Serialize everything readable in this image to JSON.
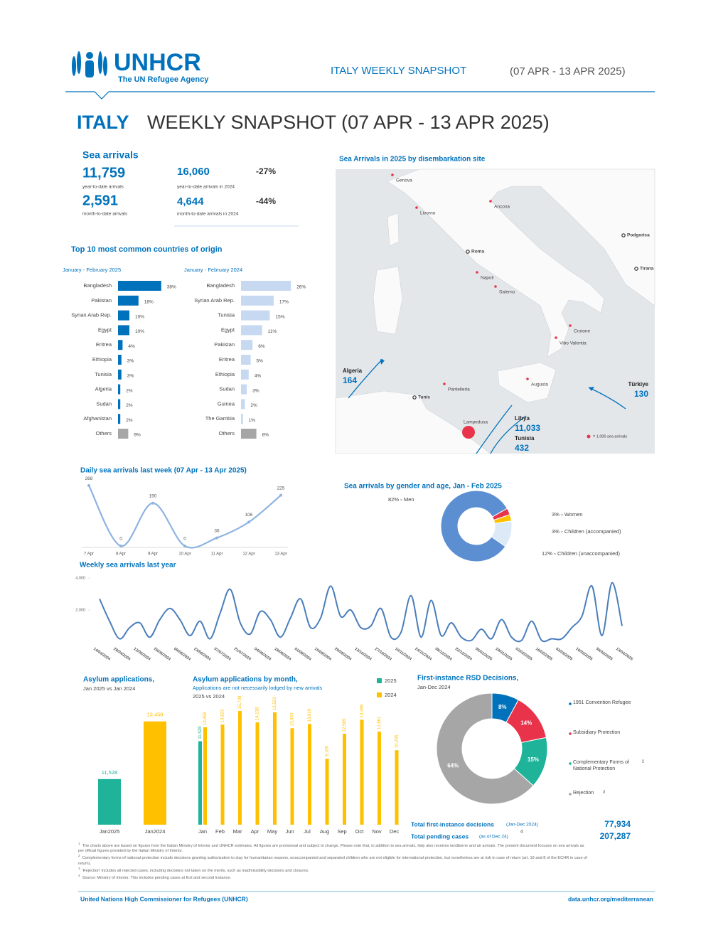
{
  "header": {
    "logo": "UNHCR",
    "logo_tagline": "The UN Refugee Agency",
    "banner": "ITALY WEEKLY SNAPSHOT",
    "banner_dates": "(07 APR - 13 APR 2025)",
    "title_country": "ITALY",
    "title_rest": "WEEKLY SNAPSHOT (07 APR - 13 APR 2025)"
  },
  "sea_arrivals": {
    "title": "Sea arrivals",
    "items": [
      {
        "value": "11,759",
        "label": "year-to-date arrivals"
      },
      {
        "value": "16,060",
        "label": "year-to-date arrivals in 2024",
        "change": "-27%"
      },
      {
        "value": "2,591",
        "label": "month-to-date arrivals"
      },
      {
        "value": "4,644",
        "label": "month-to-date arrivals in 2024",
        "change": "-44%"
      }
    ]
  },
  "origin_title": "Top 10 most common countries of origin",
  "map": {
    "title": "Sea Arrivals in 2025 by disembarkation site",
    "places": [
      "Genova",
      "Livorno",
      "Ancona",
      "Roma",
      "Napoli",
      "Salerno",
      "Crotone",
      "Vibo Valentia",
      "Augusta",
      "Pantelleria",
      "Lampedusa",
      "Tunis",
      "Podgorica",
      "Tirana"
    ],
    "routes": [
      {
        "name": "Algeria",
        "value": "164"
      },
      {
        "name": "Türkiye",
        "value": "130"
      },
      {
        "name": "Libya",
        "value": "11,033"
      },
      {
        "name": "Tunisia",
        "value": "432"
      }
    ],
    "legend": "= 1,000 sea arrivals"
  },
  "chart_data": [
    {
      "type": "hbar",
      "subtitle": "January - February 2025",
      "categories": [
        "Bangladesh",
        "Pakistan",
        "Syrian Arab Rep.",
        "Egypt",
        "Eritrea",
        "Ethiopia",
        "Tunisia",
        "Algeria",
        "Sudan",
        "Afghanistan",
        "Others"
      ],
      "values": [
        38,
        18,
        10,
        10,
        4,
        3,
        3,
        2,
        2,
        2,
        9
      ],
      "value_labels": [
        "38%",
        "18%",
        "10%",
        "10%",
        "4%",
        "3%",
        "3%",
        "2%",
        "2%",
        "2%",
        "9%"
      ],
      "colors": [
        "#0072bc",
        "#0072bc",
        "#0072bc",
        "#0072bc",
        "#0072bc",
        "#0072bc",
        "#0072bc",
        "#0072bc",
        "#0072bc",
        "#0072bc",
        "#a6a6a6"
      ]
    },
    {
      "type": "hbar",
      "subtitle": "January - February 2024",
      "categories": [
        "Bangladesh",
        "Syrian Arab Rep.",
        "Tunisia",
        "Egypt",
        "Pakistan",
        "Eritrea",
        "Ethiopia",
        "Sudan",
        "Guinea",
        "The Gambia",
        "Others"
      ],
      "values": [
        26,
        17,
        15,
        11,
        6,
        5,
        4,
        3,
        2,
        1,
        8
      ],
      "value_labels": [
        "26%",
        "17%",
        "15%",
        "11%",
        "6%",
        "5%",
        "4%",
        "3%",
        "2%",
        "1%",
        "8%"
      ],
      "colors": [
        "#c6d9f1",
        "#c6d9f1",
        "#c6d9f1",
        "#c6d9f1",
        "#c6d9f1",
        "#c6d9f1",
        "#c6d9f1",
        "#c6d9f1",
        "#c6d9f1",
        "#c6d9f1",
        "#a6a6a6"
      ]
    },
    {
      "type": "line",
      "title": "Daily sea arrivals last week (07 Apr - 13 Apr 2025)",
      "categories": [
        "7 Apr",
        "8 Apr",
        "9 Apr",
        "10 Apr",
        "11 Apr",
        "12 Apr",
        "13 Apr"
      ],
      "values": [
        268,
        0,
        190,
        0,
        36,
        106,
        225
      ],
      "color": "#8db3e2",
      "ylim": [
        0,
        270
      ],
      "data_labels": true
    },
    {
      "type": "donut",
      "title": "Sea arrivals by gender and age, Jan - Feb 2025",
      "categories": [
        "Men",
        "Women",
        "Children (accompanied)",
        "Children (unaccompanied)"
      ],
      "values": [
        82,
        3,
        3,
        12
      ],
      "value_labels": [
        "82%",
        "3%",
        "3%",
        "12%"
      ],
      "colors": [
        "#5b8fd1",
        "#e8334a",
        "#ffc000",
        "#dce9f6"
      ]
    },
    {
      "type": "line",
      "title": "Weekly sea arrivals last year",
      "categories": [
        "14/04/2024",
        null,
        "28/04/2024",
        null,
        "12/05/2024",
        null,
        "26/05/2024",
        null,
        "09/06/2024",
        null,
        "23/06/2024",
        null,
        "07/07/2024",
        null,
        "21/07/2024",
        null,
        "04/08/2024",
        null,
        "18/08/2024",
        null,
        "01/09/2024",
        null,
        "15/09/2024",
        null,
        "29/09/2024",
        null,
        "13/10/2024",
        null,
        "27/10/2024",
        null,
        "10/11/2024",
        null,
        "24/11/2024",
        null,
        "08/12/2024",
        null,
        "22/12/2024",
        null,
        "05/01/2025",
        null,
        "19/01/2025",
        null,
        "02/02/2025",
        null,
        "16/02/2025",
        null,
        "02/03/2025",
        null,
        "16/03/2025",
        null,
        "30/03/2025",
        null,
        "13/04/2025"
      ],
      "values": [
        2700,
        1300,
        200,
        900,
        1200,
        300,
        1400,
        2100,
        1400,
        400,
        1300,
        200,
        1800,
        3300,
        1200,
        500,
        1900,
        1400,
        300,
        1500,
        2700,
        900,
        1500,
        3500,
        1600,
        2000,
        900,
        1000,
        2100,
        300,
        600,
        2900,
        300,
        2600,
        400,
        1200,
        300,
        100,
        800,
        200,
        1400,
        300,
        100,
        1300,
        100,
        200,
        200,
        900,
        1600,
        3500,
        400,
        3700,
        1000
      ],
      "color": "#4a7ebb",
      "ylim": [
        0,
        4200
      ],
      "yticks": [
        {
          "value": 2000,
          "label": "2,000"
        },
        {
          "value": 4000,
          "label": "4,000"
        }
      ]
    },
    {
      "type": "bar",
      "title": "Asylum applications,",
      "subtitle": "Jan 2025 vs Jan 2024",
      "categories": [
        "Jan2025",
        "Jan2024"
      ],
      "values": [
        11528,
        13458
      ],
      "value_labels": [
        "11,528",
        "13,458"
      ],
      "colors": [
        "#1fb39a",
        "#ffc000"
      ],
      "ylim": [
        10000,
        14000
      ]
    },
    {
      "type": "grouped_bar",
      "title": "Asylum applications by month,",
      "subtitle": "Applications are not necessarily lodged by new arrivals",
      "subtitle2": "2025 vs 2024",
      "categories": [
        "Jan",
        "Feb",
        "Mar",
        "Apr",
        "May",
        "Jun",
        "Jul",
        "Aug",
        "Sep",
        "Oct",
        "Nov",
        "Dec"
      ],
      "ylim": [
        0,
        16500
      ],
      "series": [
        {
          "name": "2025",
          "color": "#1fb39a",
          "values": [
            11528,
            null,
            null,
            null,
            null,
            null,
            null,
            null,
            null,
            null,
            null,
            null
          ],
          "value_labels": [
            "11,528",
            null,
            null,
            null,
            null,
            null,
            null,
            null,
            null,
            null,
            null,
            null
          ]
        },
        {
          "name": "2024",
          "color": "#ffc000",
          "values": [
            13458,
            13823,
            15708,
            14138,
            15523,
            13333,
            13919,
            9108,
            12565,
            14498,
            12861,
            10296
          ],
          "value_labels": [
            "13,458",
            "13,823",
            "15,708",
            "14,138",
            "15,523",
            "13,333",
            "13,919",
            "9,108",
            "12,565",
            "14,498",
            "12,861",
            "10,296"
          ]
        }
      ]
    },
    {
      "type": "donut",
      "title": "First-instance RSD Decisions,",
      "subtitle": "Jan-Dec 2024",
      "categories": [
        "1951 Convention Refugee",
        "Subsidiary Protection",
        "Complementary Forms of National Protection",
        "Rejection"
      ],
      "note_markers": [
        null,
        null,
        "2",
        "3"
      ],
      "values": [
        8,
        14,
        15,
        64
      ],
      "value_labels": [
        "8%",
        "14%",
        "15%",
        "64%"
      ],
      "colors": [
        "#0072bc",
        "#e8334a",
        "#1fb39a",
        "#a6a6a6"
      ]
    }
  ],
  "rsd_totals": [
    {
      "label": "Total first-instance decisions",
      "note": "(Jan-Dec 2024)",
      "value": "77,934"
    },
    {
      "label": "Total pending cases",
      "note": "(as of Dec 24)",
      "marker": "4",
      "value": "207,287"
    }
  ],
  "footnotes": [
    {
      "marker": "1",
      "text": "The charts above are based on figures from the Italian Ministry of Interior and UNHCR estimates. All figures are provisional and subject to change. Please note that, in addition to sea arrivals, Italy also receives landborne and air arrivals. The present document focuses on sea arrivals as per official figures provided by the Italian Ministry of Interior."
    },
    {
      "marker": "2",
      "text": "Complementary forms of national protection include decisions granting authorization to stay for humanitarian reasons, unaccompanied and separated children who are not eligible for international protection, but nonetheless are at risk in case of return (art. 19 and 8 of the ECHR in case of return)."
    },
    {
      "marker": "3",
      "text": "'Rejection' includes all rejected cases, including decisions not taken on the merits, such as inadmissibility decisions and closures."
    },
    {
      "marker": "4",
      "text": "Source: Ministry of Interior. This includes pending cases at first and second instance."
    }
  ],
  "footer": {
    "left": "United Nations High Commissioner for Refugees (UNHCR)",
    "right": "data.unhcr.org/mediterranean"
  }
}
